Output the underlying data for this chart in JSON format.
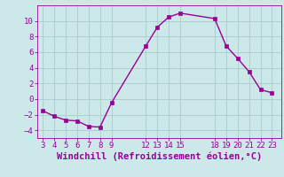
{
  "x": [
    3,
    4,
    5,
    6,
    7,
    8,
    9,
    12,
    13,
    14,
    15,
    18,
    19,
    20,
    21,
    22,
    23
  ],
  "y": [
    -1.5,
    -2.2,
    -2.7,
    -2.8,
    -3.5,
    -3.6,
    -0.5,
    6.8,
    9.2,
    10.5,
    11.0,
    10.3,
    6.8,
    5.2,
    3.5,
    1.2,
    0.8
  ],
  "line_color": "#990099",
  "marker": "s",
  "markersize": 2.5,
  "linewidth": 1.0,
  "bg_color": "#cce8e8",
  "grid_color": "#aacccc",
  "xlabel": "Windchill (Refroidissement éolien,°C)",
  "xlabel_color": "#990099",
  "xlabel_fontsize": 7.5,
  "tick_color": "#990099",
  "tick_fontsize": 6.5,
  "ylim": [
    -5,
    12
  ],
  "yticks": [
    -4,
    -2,
    0,
    2,
    4,
    6,
    8,
    10
  ],
  "xticks": [
    3,
    4,
    5,
    6,
    7,
    8,
    9,
    12,
    13,
    14,
    15,
    18,
    19,
    20,
    21,
    22,
    23
  ],
  "xlim": [
    2.5,
    23.8
  ]
}
